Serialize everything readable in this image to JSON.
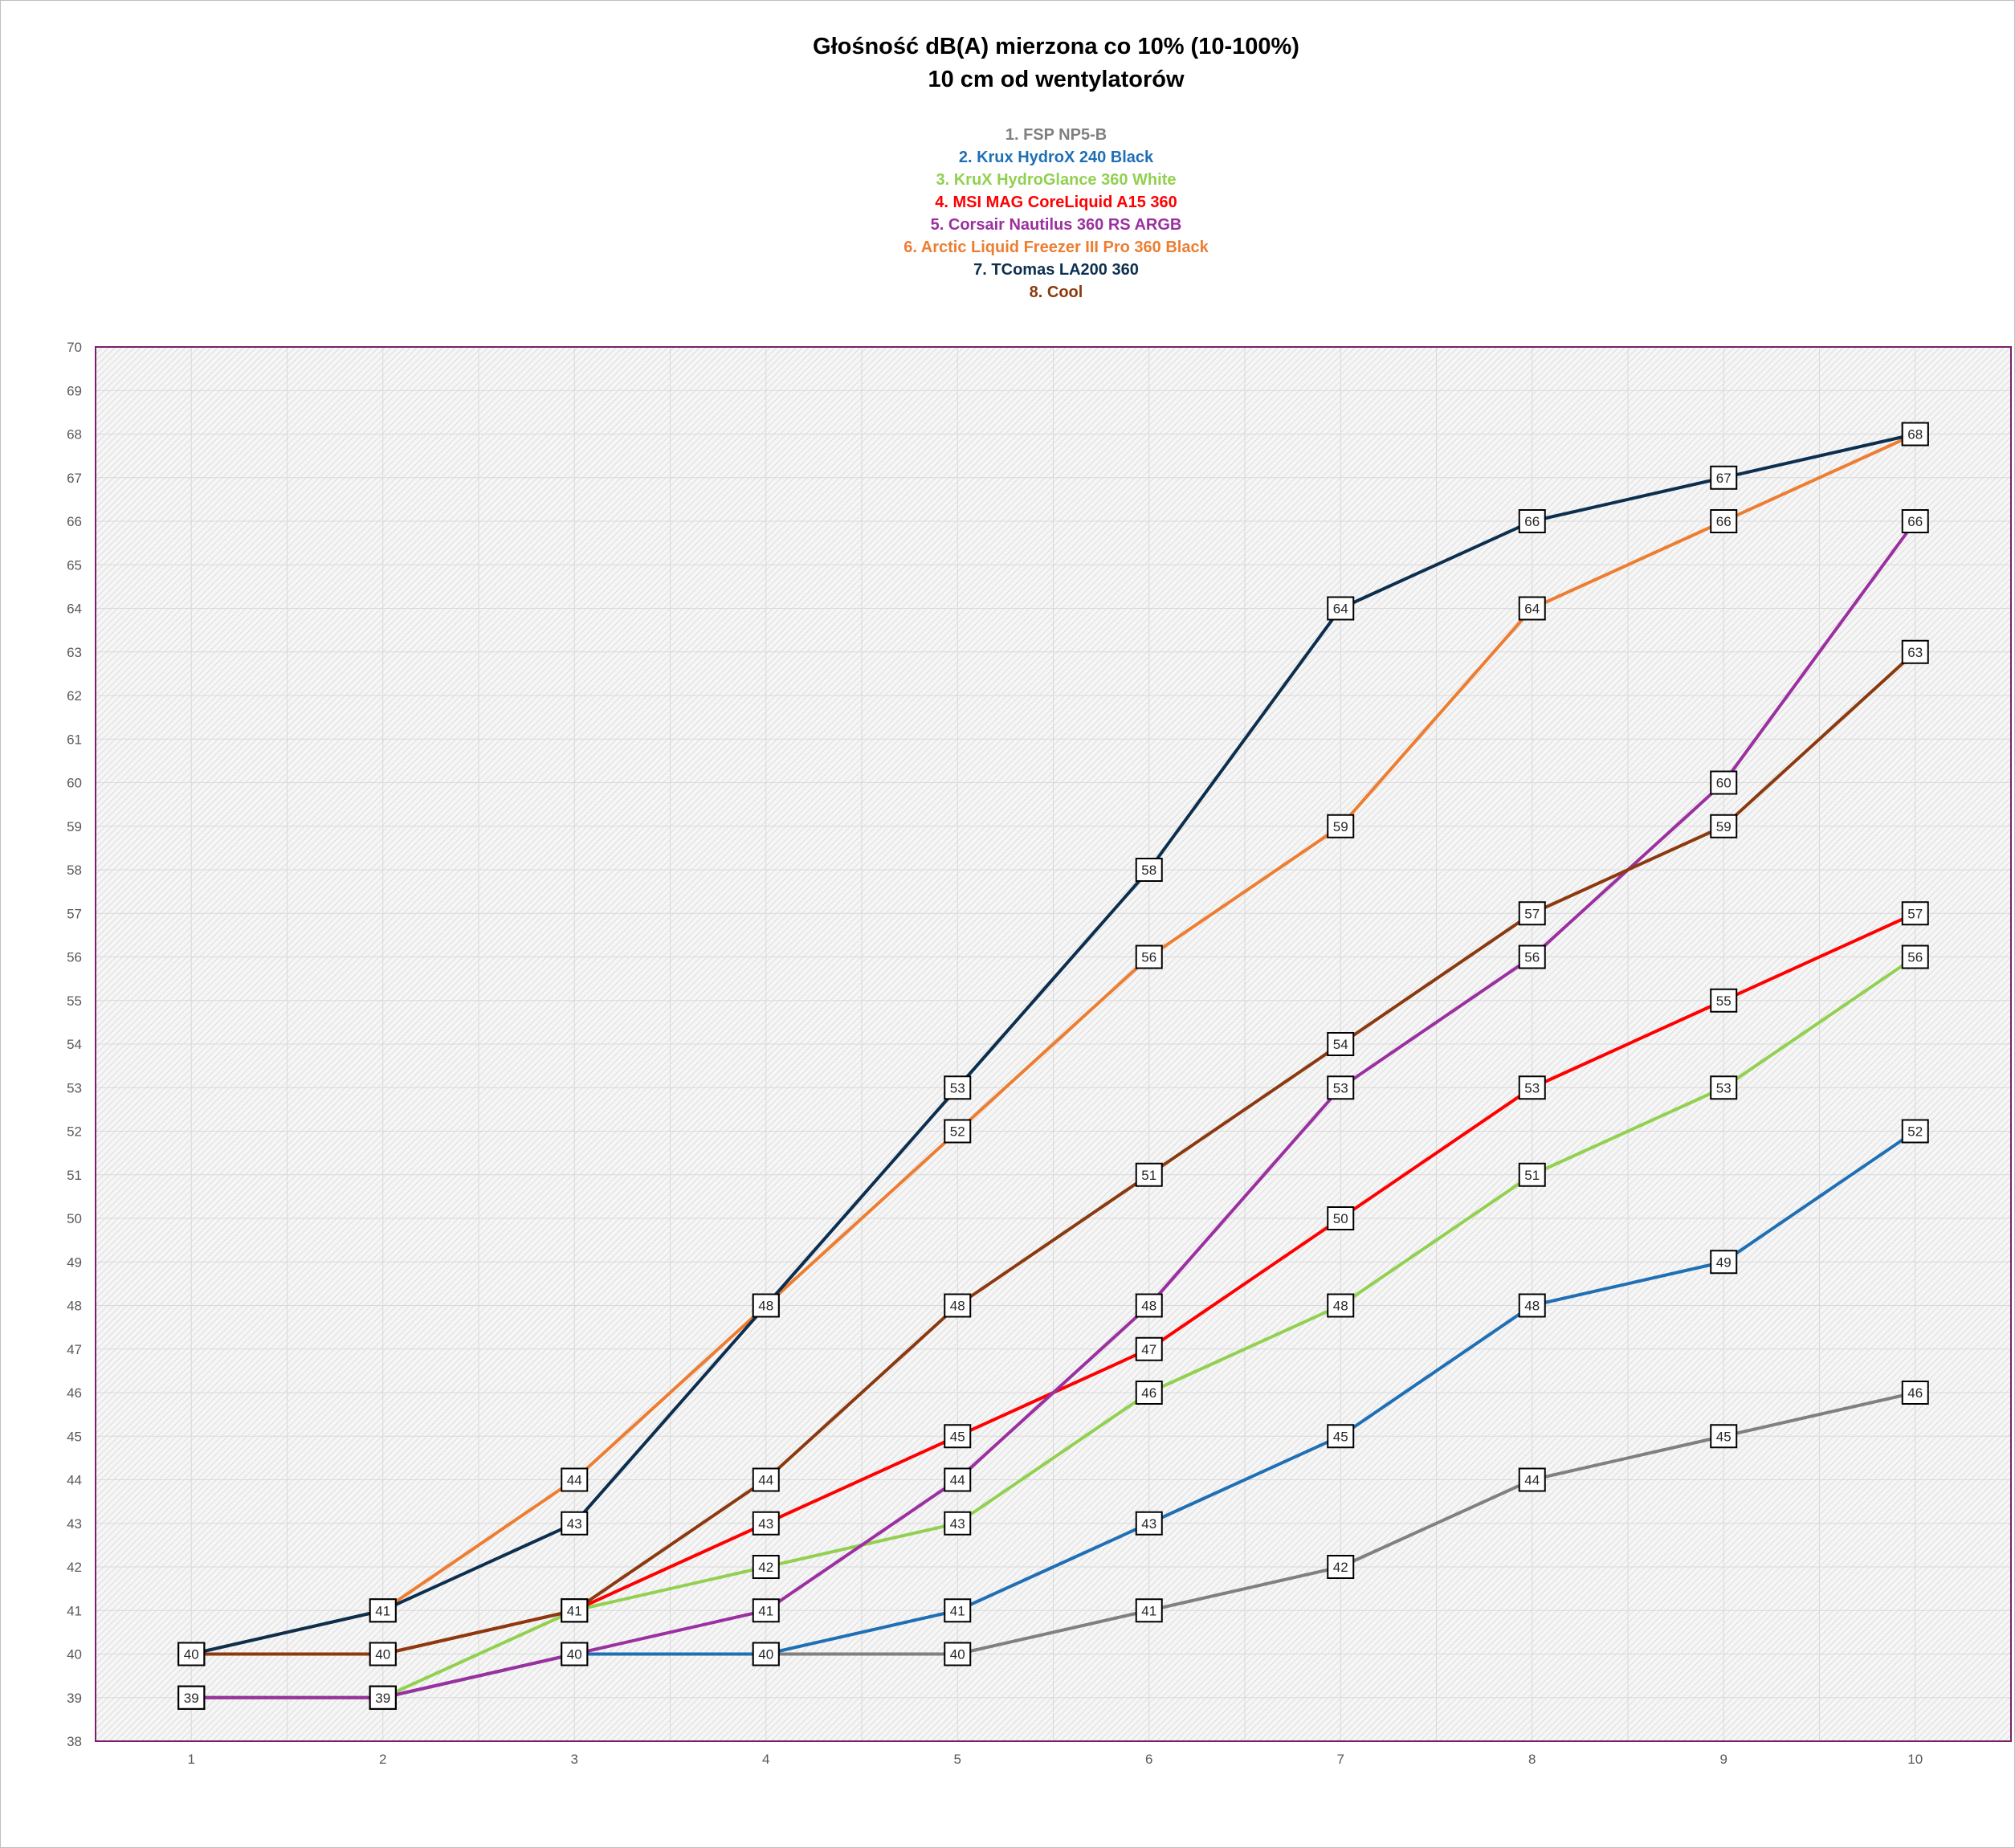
{
  "chart_data": {
    "type": "line",
    "title": "Głośność dB(A) mierzona co 10% (10-100%)",
    "subtitle": "10 cm od wentylatorów",
    "x": [
      1,
      2,
      3,
      4,
      5,
      6,
      7,
      8,
      9,
      10
    ],
    "ylim": [
      38,
      70
    ],
    "xticks": [
      "1",
      "2",
      "3",
      "4",
      "5",
      "6",
      "7",
      "8",
      "9",
      "10"
    ],
    "grid": true,
    "legend_placement": "top-center",
    "series": [
      {
        "name": "1. FSP NP5-B",
        "color": "#808080",
        "values": [
          39,
          39,
          40,
          40,
          40,
          41,
          42,
          44,
          45,
          46
        ]
      },
      {
        "name": "2. Krux HydroX 240 Black",
        "color": "#1f6fb5",
        "values": [
          39,
          39,
          40,
          40,
          41,
          43,
          45,
          48,
          49,
          52
        ]
      },
      {
        "name": "3. KruX HydroGlance 360 White",
        "color": "#92d050",
        "values": [
          39,
          39,
          41,
          42,
          43,
          46,
          48,
          51,
          53,
          56
        ]
      },
      {
        "name": "4. MSI MAG CoreLiquid A15 360",
        "color": "#ff0000",
        "values": [
          40,
          40,
          41,
          43,
          45,
          47,
          50,
          53,
          55,
          57
        ]
      },
      {
        "name": "5. Corsair Nautilus 360 RS ARGB",
        "color": "#9b30a0",
        "values": [
          39,
          39,
          40,
          41,
          44,
          48,
          53,
          56,
          60,
          66
        ]
      },
      {
        "name": "6. Arctic Liquid Freezer III Pro 360 Black",
        "color": "#ed7d31",
        "values": [
          40,
          41,
          44,
          48,
          52,
          56,
          59,
          64,
          66,
          68
        ]
      },
      {
        "name": "7. TComas LA200 360",
        "color": "#0d2f4f",
        "values": [
          40,
          41,
          43,
          48,
          53,
          58,
          64,
          66,
          67,
          68
        ]
      },
      {
        "name": "8. Cool",
        "color": "#8b3a0f",
        "values": [
          40,
          40,
          41,
          44,
          48,
          51,
          54,
          57,
          59,
          63
        ]
      }
    ]
  },
  "style": {
    "plot_border_color": "#7b1f6a",
    "grid_color": "#d9d9d9",
    "label_box_border": "#000000"
  }
}
